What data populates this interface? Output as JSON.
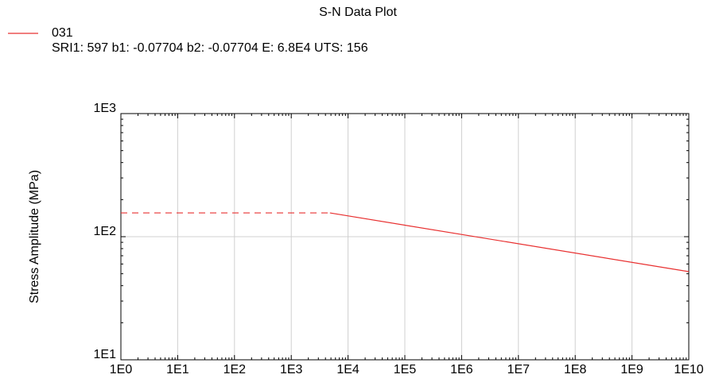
{
  "chart_data": {
    "type": "line",
    "title": "S-N Data Plot",
    "subtitle": "SRI1: 597  b1: -0.07704  b2: -0.07704  E: 6.8E4  UTS: 156",
    "y_label": "Stress Amplitude (MPa)",
    "x_scale": "log",
    "y_scale": "log",
    "grid": true,
    "legend": "top-left",
    "xlim": [
      1,
      10000000000
    ],
    "ylim": [
      10,
      1000
    ],
    "xticks": [
      {
        "value": 1,
        "label": "1E0"
      },
      {
        "value": 10,
        "label": "1E1"
      },
      {
        "value": 100,
        "label": "1E2"
      },
      {
        "value": 1000,
        "label": "1E3"
      },
      {
        "value": 10000,
        "label": "1E4"
      },
      {
        "value": 100000,
        "label": "1E5"
      },
      {
        "value": 1000000,
        "label": "1E6"
      },
      {
        "value": 10000000,
        "label": "1E7"
      },
      {
        "value": 100000000,
        "label": "1E8"
      },
      {
        "value": 1000000000,
        "label": "1E9"
      },
      {
        "value": 10000000000,
        "label": "1E10"
      }
    ],
    "yticks": [
      {
        "value": 10,
        "label": "1E1"
      },
      {
        "value": 100,
        "label": "1E2"
      },
      {
        "value": 1000,
        "label": "1E3"
      }
    ],
    "series": [
      {
        "name": "031",
        "color": "#e83030",
        "x": [
          1,
          4800,
          10000000000
        ],
        "values": [
          156,
          156,
          52
        ],
        "line_styles": [
          "dashed",
          "solid"
        ]
      }
    ]
  }
}
